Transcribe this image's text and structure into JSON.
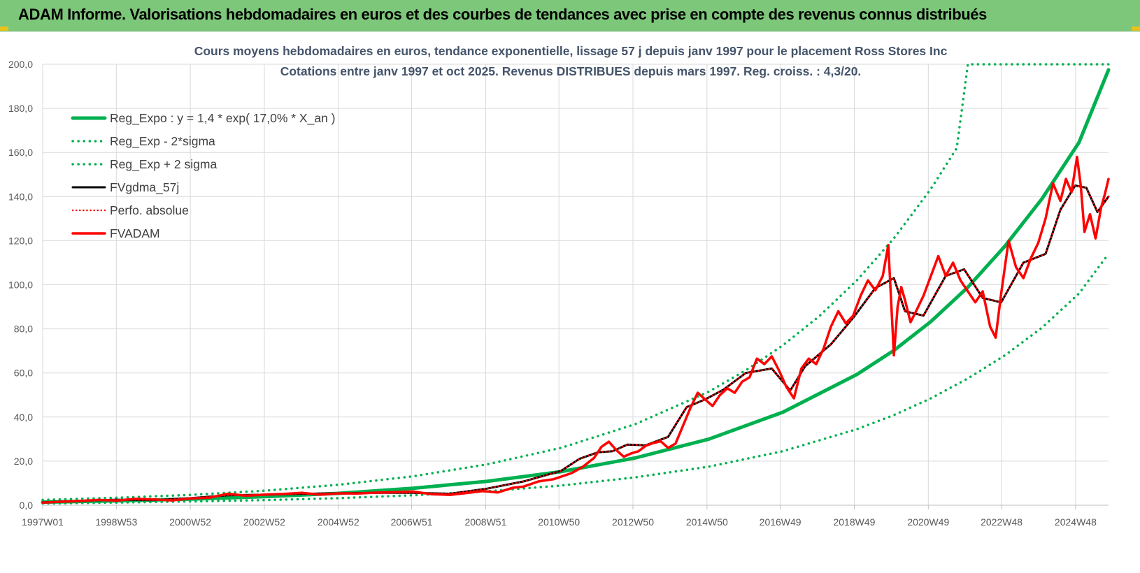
{
  "header": {
    "title": "ADAM Informe. Valorisations hebdomadaires en euros et des courbes de tendances avec prise en compte des revenus connus distribués"
  },
  "colors": {
    "header_bg": "#7dc77a",
    "reg_expo": "#00b050",
    "price": "#ff0000",
    "smooth": "#000000",
    "grid": "#d9d9d9",
    "title_text": "#44546a"
  },
  "chart_data": {
    "type": "line",
    "title_line1": "Cours moyens hebdomadaires en euros, tendance exponentielle, lissage 57 j depuis janv 1997 pour le placement Ross Stores Inc",
    "title_line2": "Cotations entre janv 1997 et oct 2025. Revenus DISTRIBUES depuis mars 1997. Reg. croiss. : 4,3/20.",
    "ylim": [
      0,
      200
    ],
    "xlim": [
      1997.0,
      2025.8
    ],
    "grid": true,
    "legend_position": "top-left",
    "y_ticks": [
      "0,0",
      "20,0",
      "40,0",
      "60,0",
      "80,0",
      "100,0",
      "120,0",
      "140,0",
      "160,0",
      "180,0",
      "200,0"
    ],
    "x_ticks": [
      {
        "label": "1997W01",
        "x": 1997.0
      },
      {
        "label": "1998W53",
        "x": 1998.99
      },
      {
        "label": "2000W52",
        "x": 2000.99
      },
      {
        "label": "2002W52",
        "x": 2002.99
      },
      {
        "label": "2004W52",
        "x": 2004.99
      },
      {
        "label": "2006W51",
        "x": 2006.97
      },
      {
        "label": "2008W51",
        "x": 2008.97
      },
      {
        "label": "2010W50",
        "x": 2010.95
      },
      {
        "label": "2012W50",
        "x": 2012.95
      },
      {
        "label": "2014W50",
        "x": 2014.95
      },
      {
        "label": "2016W49",
        "x": 2016.93
      },
      {
        "label": "2018W49",
        "x": 2018.93
      },
      {
        "label": "2020W49",
        "x": 2020.93
      },
      {
        "label": "2022W48",
        "x": 2022.91
      },
      {
        "label": "2024W48",
        "x": 2024.91
      }
    ],
    "series": [
      {
        "name": "Reg_Expo : y = 1,4 * exp( 17,0% *  X_an )",
        "style": "solid",
        "color": "#00b050",
        "width": 5,
        "x": [
          1997.0,
          1999.0,
          2001.0,
          2003.0,
          2005.0,
          2007.0,
          2009.0,
          2011.0,
          2013.0,
          2015.0,
          2017.0,
          2019.0,
          2020.0,
          2021.0,
          2022.0,
          2023.0,
          2024.0,
          2025.0,
          2025.8
        ],
        "y": [
          1.4,
          2.0,
          2.8,
          3.9,
          5.4,
          7.7,
          10.8,
          15.2,
          21.4,
          30.0,
          42.2,
          59.3,
          70.2,
          83.3,
          98.9,
          117.5,
          139.0,
          164.5,
          197.5
        ]
      },
      {
        "name": "Reg_Exp - 2*sigma",
        "style": "dotted",
        "color": "#00b050",
        "width": 3.5,
        "x": [
          1997.0,
          1999.0,
          2001.0,
          2003.0,
          2005.0,
          2007.0,
          2009.0,
          2011.0,
          2013.0,
          2015.0,
          2017.0,
          2019.0,
          2020.0,
          2021.0,
          2022.0,
          2023.0,
          2024.0,
          2025.0,
          2025.8
        ],
        "y": [
          0.8,
          1.2,
          1.7,
          2.3,
          3.2,
          4.5,
          6.3,
          8.9,
          12.6,
          17.5,
          24.5,
          34.5,
          40.9,
          48.5,
          57.5,
          68.0,
          80.5,
          96.0,
          114.0
        ]
      },
      {
        "name": "Reg_Exp + 2 sigma",
        "style": "dotted",
        "color": "#00b050",
        "width": 3.5,
        "x": [
          1997.0,
          1999.0,
          2001.0,
          2003.0,
          2005.0,
          2007.0,
          2009.0,
          2011.0,
          2013.0,
          2015.0,
          2016.0,
          2017.0,
          2018.0,
          2019.0,
          2020.0,
          2021.0,
          2021.7,
          2022.0,
          2025.8
        ],
        "y": [
          2.4,
          3.4,
          4.7,
          6.6,
          9.3,
          13.1,
          18.5,
          26.0,
          36.7,
          51.5,
          61.2,
          72.5,
          86.0,
          102.0,
          121.0,
          143.5,
          162.0,
          200.0,
          200.0
        ]
      },
      {
        "name": "FVgdma_57j",
        "style": "solid",
        "color": "#000000",
        "width": 3,
        "x": [
          1997.0,
          1998.0,
          1999.0,
          2000.0,
          2001.0,
          2002.0,
          2003.0,
          2004.0,
          2005.0,
          2006.0,
          2007.0,
          2008.0,
          2009.0,
          2010.0,
          2011.0,
          2011.5,
          2012.0,
          2012.4,
          2012.8,
          2013.3,
          2013.9,
          2014.4,
          2014.9,
          2015.4,
          2016.0,
          2016.7,
          2017.2,
          2017.6,
          2018.3,
          2018.9,
          2019.5,
          2020.0,
          2020.3,
          2020.8,
          2021.4,
          2021.9,
          2022.4,
          2022.9,
          2023.5,
          2024.1,
          2024.5,
          2024.9,
          2025.2,
          2025.5,
          2025.8
        ],
        "y": [
          1.3,
          2.0,
          2.5,
          2.3,
          3.2,
          4.5,
          4.8,
          5.2,
          5.4,
          5.6,
          5.6,
          5.2,
          7.5,
          10.8,
          15.5,
          21.0,
          24.0,
          24.5,
          27.5,
          27.2,
          31.0,
          44.5,
          48.0,
          52.5,
          60.0,
          62.0,
          52.0,
          63.0,
          73.0,
          85.0,
          98.5,
          103.0,
          88.0,
          86.0,
          104.0,
          107.0,
          94.0,
          92.0,
          110.0,
          114.0,
          134.0,
          145.0,
          144.0,
          133.0,
          140.0
        ]
      },
      {
        "name": "Perfo. absolue",
        "style": "dotted",
        "color": "#ff0000",
        "width": 2.5,
        "x": [
          1997.0,
          1998.0,
          1999.0,
          2000.0,
          2001.0,
          2002.0,
          2003.0,
          2004.0,
          2005.0,
          2006.0,
          2007.0,
          2008.0,
          2009.0,
          2010.0,
          2011.0,
          2011.5,
          2012.0,
          2012.4,
          2012.8,
          2013.3,
          2013.9,
          2014.4,
          2014.9,
          2015.4,
          2016.0,
          2016.7,
          2017.2,
          2017.6,
          2018.3,
          2018.9,
          2019.5,
          2020.0,
          2020.3,
          2020.8,
          2021.4,
          2021.9,
          2022.4,
          2022.9,
          2023.5,
          2024.1,
          2024.5,
          2024.9,
          2025.2,
          2025.5,
          2025.8
        ],
        "y": [
          1.3,
          2.0,
          2.5,
          2.3,
          3.2,
          4.5,
          4.8,
          5.2,
          5.4,
          5.6,
          5.6,
          5.2,
          7.5,
          10.8,
          15.5,
          21.0,
          24.0,
          24.5,
          27.5,
          27.2,
          31.0,
          44.5,
          48.0,
          52.5,
          60.0,
          62.0,
          52.0,
          63.0,
          73.0,
          85.0,
          98.5,
          103.0,
          88.0,
          86.0,
          104.0,
          107.0,
          94.0,
          92.0,
          110.0,
          114.0,
          134.0,
          145.0,
          144.0,
          133.0,
          140.0
        ]
      },
      {
        "name": "FVADAM",
        "style": "solid",
        "color": "#ff0000",
        "width": 3.5,
        "x": [
          1997.0,
          1997.5,
          1998.0,
          1998.5,
          1999.0,
          1999.5,
          2000.0,
          2000.5,
          2001.0,
          2001.5,
          2002.0,
          2002.5,
          2003.0,
          2003.5,
          2004.0,
          2004.5,
          2005.0,
          2005.5,
          2006.0,
          2006.5,
          2007.0,
          2007.5,
          2008.0,
          2008.5,
          2008.9,
          2009.3,
          2009.7,
          2010.0,
          2010.4,
          2010.8,
          2011.0,
          2011.3,
          2011.6,
          2011.9,
          2012.1,
          2012.3,
          2012.5,
          2012.7,
          2012.9,
          2013.1,
          2013.3,
          2013.5,
          2013.7,
          2013.9,
          2014.1,
          2014.3,
          2014.5,
          2014.7,
          2014.9,
          2015.1,
          2015.3,
          2015.5,
          2015.7,
          2015.9,
          2016.1,
          2016.3,
          2016.5,
          2016.7,
          2016.9,
          2017.1,
          2017.3,
          2017.5,
          2017.7,
          2017.9,
          2018.1,
          2018.3,
          2018.5,
          2018.7,
          2018.9,
          2019.1,
          2019.3,
          2019.5,
          2019.7,
          2019.85,
          2020.0,
          2020.1,
          2020.2,
          2020.3,
          2020.45,
          2020.6,
          2020.8,
          2021.0,
          2021.2,
          2021.4,
          2021.6,
          2021.8,
          2022.0,
          2022.2,
          2022.4,
          2022.6,
          2022.75,
          2022.9,
          2023.1,
          2023.3,
          2023.5,
          2023.7,
          2023.9,
          2024.1,
          2024.3,
          2024.5,
          2024.65,
          2024.8,
          2024.95,
          2025.05,
          2025.15,
          2025.3,
          2025.45,
          2025.6,
          2025.7,
          2025.8
        ],
        "y": [
          1.2,
          1.6,
          1.9,
          2.4,
          2.1,
          2.9,
          2.6,
          2.2,
          3.1,
          3.4,
          5.2,
          4.3,
          4.8,
          5.1,
          5.6,
          4.8,
          5.4,
          5.3,
          5.7,
          5.9,
          6.2,
          5.0,
          4.7,
          5.6,
          6.4,
          5.8,
          7.9,
          8.5,
          10.8,
          11.8,
          12.9,
          14.6,
          17.5,
          21.5,
          26.5,
          28.8,
          25.0,
          22.0,
          23.5,
          24.5,
          27.0,
          28.2,
          29.0,
          26.0,
          28.0,
          36.0,
          44.0,
          51.0,
          48.0,
          45.0,
          50.0,
          53.0,
          51.0,
          56.0,
          58.0,
          66.5,
          64.0,
          67.5,
          61.0,
          53.5,
          48.5,
          62.0,
          66.5,
          64.0,
          71.0,
          81.0,
          88.0,
          82.5,
          86.0,
          95.0,
          102.0,
          97.5,
          104.0,
          118.0,
          68.0,
          90.0,
          99.0,
          93.0,
          83.0,
          88.0,
          95.0,
          104.0,
          113.0,
          104.0,
          110.0,
          102.0,
          97.0,
          92.0,
          97.0,
          81.0,
          76.0,
          96.0,
          120.0,
          108.0,
          103.0,
          112.0,
          119.0,
          130.0,
          146.0,
          138.0,
          148.0,
          142.0,
          158.0,
          145.0,
          124.0,
          132.0,
          121.0,
          135.0,
          141.0,
          148.0
        ]
      }
    ]
  }
}
